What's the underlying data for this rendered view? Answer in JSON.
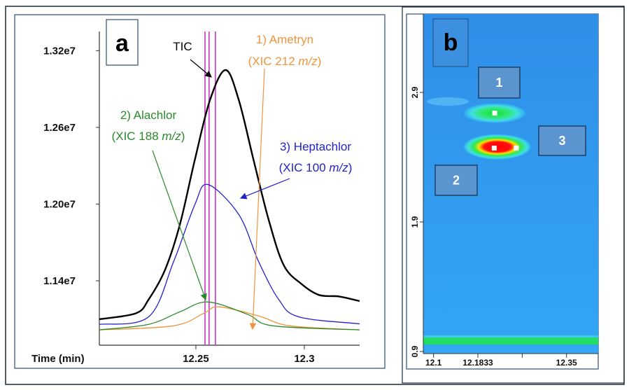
{
  "chart_data": [
    {
      "type": "line",
      "panel_label": "a",
      "xlabel": "Time (min)",
      "xlim": [
        12.2055,
        12.3255
      ],
      "ylim": [
        10896000,
        13350000
      ],
      "x_ticks": [
        12.25,
        12.3
      ],
      "x_tick_labels": [
        "12.25",
        "12.3"
      ],
      "y_ticks": [
        13200000,
        12600000,
        12000000,
        11400000
      ],
      "y_tick_labels": [
        "1.32e7",
        "1.26e7",
        "1.20e7",
        "1.14e7"
      ],
      "grid": false,
      "series": [
        {
          "name": "TIC",
          "color": "#000000",
          "x": [
            12.2055,
            12.2224,
            12.2282,
            12.2358,
            12.2426,
            12.2495,
            12.2565,
            12.2637,
            12.2698,
            12.2766,
            12.2836,
            12.2905,
            12.2987,
            12.3068,
            12.316,
            12.3255
          ],
          "y": [
            11099000,
            11146000,
            11253000,
            11486000,
            11838000,
            12345000,
            12814000,
            13049000,
            12814000,
            12345000,
            11875000,
            11522000,
            11375000,
            11289000,
            11277000,
            11241000
          ]
        },
        {
          "name": "3) Heptachlor",
          "color": "#2222cc",
          "x": [
            12.2055,
            12.2282,
            12.2397,
            12.2495,
            12.2555,
            12.2698,
            12.279,
            12.2882,
            12.2974,
            12.3255
          ],
          "y": [
            11059000,
            11118000,
            11548000,
            11995000,
            12153000,
            11918000,
            11548000,
            11253000,
            11118000,
            11063000
          ]
        },
        {
          "name": "2) Alachlor",
          "color": "#2a8a2a",
          "x": [
            12.2055,
            12.2282,
            12.2426,
            12.2555,
            12.274,
            12.2855,
            12.3255
          ],
          "y": [
            11016000,
            11059000,
            11157000,
            11234000,
            11136000,
            11048000,
            11016000
          ]
        },
        {
          "name": "1) Ametryn",
          "color": "#f0943c",
          "x": [
            12.2055,
            12.2397,
            12.2537,
            12.2606,
            12.279,
            12.2933,
            12.3255
          ],
          "y": [
            11016000,
            11048000,
            11146000,
            11196000,
            11125000,
            11048000,
            11016000
          ]
        }
      ],
      "marker_lines": {
        "color": "#cc33cc",
        "x": [
          12.2542,
          12.2561,
          12.259
        ]
      },
      "annotations": [
        {
          "series": "TIC",
          "lines": [
            "TIC"
          ],
          "color": "#000000"
        },
        {
          "series": "1) Ametryn",
          "lines": [
            "1) Ametryn",
            "(XIC 212 ",
            "m/z",
            ")"
          ],
          "color": "#f0943c"
        },
        {
          "series": "2) Alachlor",
          "lines": [
            "2) Alachlor",
            "(XIC 188 ",
            "m/z",
            ")"
          ],
          "color": "#2a8a2a"
        },
        {
          "series": "3) Heptachlor",
          "lines": [
            "3) Heptachlor",
            "(XIC 100 ",
            "m/z",
            ")"
          ],
          "color": "#2222cc"
        }
      ]
    },
    {
      "type": "heatmap",
      "panel_label": "b",
      "xlim": [
        12.075,
        12.42
      ],
      "ylim": [
        0.85,
        3.45
      ],
      "x_ticks": [
        12.1,
        12.1833,
        12.2667,
        12.35
      ],
      "x_tick_labels": [
        "12.1",
        "12.1833",
        "",
        "12.35"
      ],
      "y_ticks": [
        2.9,
        1.9,
        0.9
      ],
      "y_tick_labels": [
        "2.9",
        "1.9",
        "0.9"
      ],
      "background_color": "#2e9cf0",
      "spots": [
        {
          "x": 12.215,
          "y": 2.74,
          "intensity": "medium"
        },
        {
          "x": 12.22,
          "y": 2.48,
          "intensity": "high"
        }
      ],
      "peak_markers": [
        {
          "x": 12.215,
          "y": 2.74
        },
        {
          "x": 12.214,
          "y": 2.47
        },
        {
          "x": 12.2555,
          "y": 2.47
        }
      ],
      "baseline_band": {
        "y": 0.98,
        "color": "#22dd66"
      },
      "peak_labels": [
        "1",
        "2",
        "3"
      ]
    }
  ]
}
